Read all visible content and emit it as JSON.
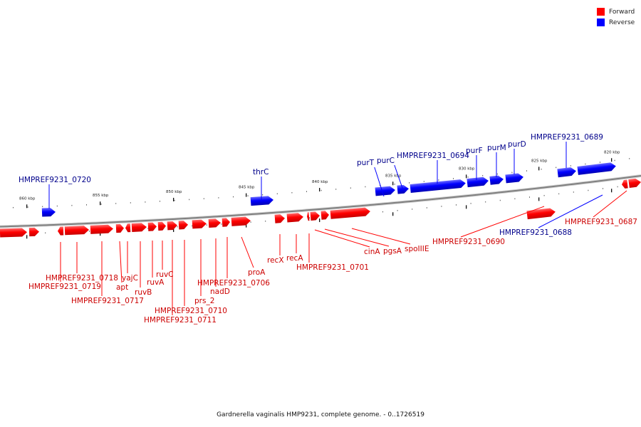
{
  "legend": {
    "forward_label": "Forward",
    "reverse_label": "Reverse",
    "forward_color": "#ff0000",
    "reverse_color": "#0000ff"
  },
  "caption": "Gardnerella vaginalis HMP9231, complete genome. - 0..1726519",
  "colors": {
    "forward_label": "#cc0000",
    "reverse_label": "#00008b",
    "backbone": "#808080"
  },
  "scale_labels": [
    "860 kbp",
    "855 kbp",
    "850 kbp",
    "845 kbp",
    "840 kbp",
    "835 kbp",
    "830 kbp",
    "825 kbp",
    "820 kbp"
  ],
  "genes": [
    {
      "label": "HMPREF9231_0720",
      "strand": "reverse"
    },
    {
      "label": "thrC",
      "strand": "reverse"
    },
    {
      "label": "purT",
      "strand": "reverse"
    },
    {
      "label": "purC",
      "strand": "reverse"
    },
    {
      "label": "HMPREF9231_0694",
      "strand": "reverse"
    },
    {
      "label": "purF",
      "strand": "reverse"
    },
    {
      "label": "purM",
      "strand": "reverse"
    },
    {
      "label": "purD",
      "strand": "reverse"
    },
    {
      "label": "HMPREF9231_0689",
      "strand": "reverse"
    },
    {
      "label": "HMPREF9231_0688",
      "strand": "reverse"
    },
    {
      "label": "HMPREF9231_0687",
      "strand": "forward"
    },
    {
      "label": "HMPREF9231_0690",
      "strand": "forward"
    },
    {
      "label": "spoIIIE",
      "strand": "forward"
    },
    {
      "label": "pgsA",
      "strand": "forward"
    },
    {
      "label": "cinA",
      "strand": "forward"
    },
    {
      "label": "HMPREF9231_0701",
      "strand": "forward"
    },
    {
      "label": "recA",
      "strand": "forward"
    },
    {
      "label": "recX",
      "strand": "forward"
    },
    {
      "label": "proA",
      "strand": "forward"
    },
    {
      "label": "HMPREF9231_0706",
      "strand": "forward"
    },
    {
      "label": "nadD",
      "strand": "forward"
    },
    {
      "label": "prs_2",
      "strand": "forward"
    },
    {
      "label": "HMPREF9231_0710",
      "strand": "forward"
    },
    {
      "label": "HMPREF9231_0711",
      "strand": "forward"
    },
    {
      "label": "ruvC",
      "strand": "forward"
    },
    {
      "label": "ruvA",
      "strand": "forward"
    },
    {
      "label": "ruvB",
      "strand": "forward"
    },
    {
      "label": "yajC",
      "strand": "forward"
    },
    {
      "label": "apt",
      "strand": "forward"
    },
    {
      "label": "HMPREF9231_0717",
      "strand": "forward"
    },
    {
      "label": "HMPREF9231_0718",
      "strand": "forward"
    },
    {
      "label": "HMPREF9231_0719",
      "strand": "forward"
    }
  ]
}
